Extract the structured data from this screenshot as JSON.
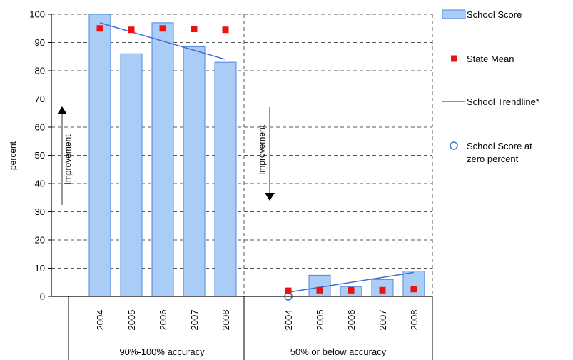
{
  "chart_data": {
    "type": "bar",
    "ylabel": "percent",
    "ylim": [
      0,
      100
    ],
    "yticks": [
      0,
      10,
      20,
      30,
      40,
      50,
      60,
      70,
      80,
      90,
      100
    ],
    "grid": true,
    "legend_position": "right",
    "groups": [
      {
        "label": "90%-100% accuracy",
        "categories": [
          "2004",
          "2005",
          "2006",
          "2007",
          "2008"
        ],
        "school_score": [
          100,
          86,
          97,
          88.5,
          83
        ],
        "state_mean": [
          95,
          94.5,
          95,
          94.8,
          94.5
        ],
        "trendline": [
          97,
          84
        ],
        "improvement_label": "Improvement",
        "improvement_direction": "up"
      },
      {
        "label": "50% or below accuracy",
        "categories": [
          "2004",
          "2005",
          "2006",
          "2007",
          "2008"
        ],
        "school_score": [
          0,
          7.5,
          3.5,
          6,
          9
        ],
        "state_mean": [
          2,
          2.2,
          2.2,
          2.2,
          2.6
        ],
        "trendline": [
          1.5,
          8.5
        ],
        "improvement_label": "Improvement",
        "improvement_direction": "down"
      }
    ],
    "legend": [
      {
        "label": "School Score",
        "marker": "bar"
      },
      {
        "label": "State Mean",
        "marker": "square"
      },
      {
        "label": "School Trendline*",
        "marker": "line"
      },
      {
        "label": "School Score at zero percent",
        "marker": "circle"
      }
    ],
    "colors": {
      "bar_fill": "#a9cdf7",
      "bar_stroke": "#4f86d9",
      "state_mean": "#ee1111",
      "trendline": "#3b6fd8",
      "zero_marker": "#3b6fd8",
      "grid": "#555555",
      "improvement_arrow": "#000000",
      "improvement_shaft": "#999999"
    }
  }
}
